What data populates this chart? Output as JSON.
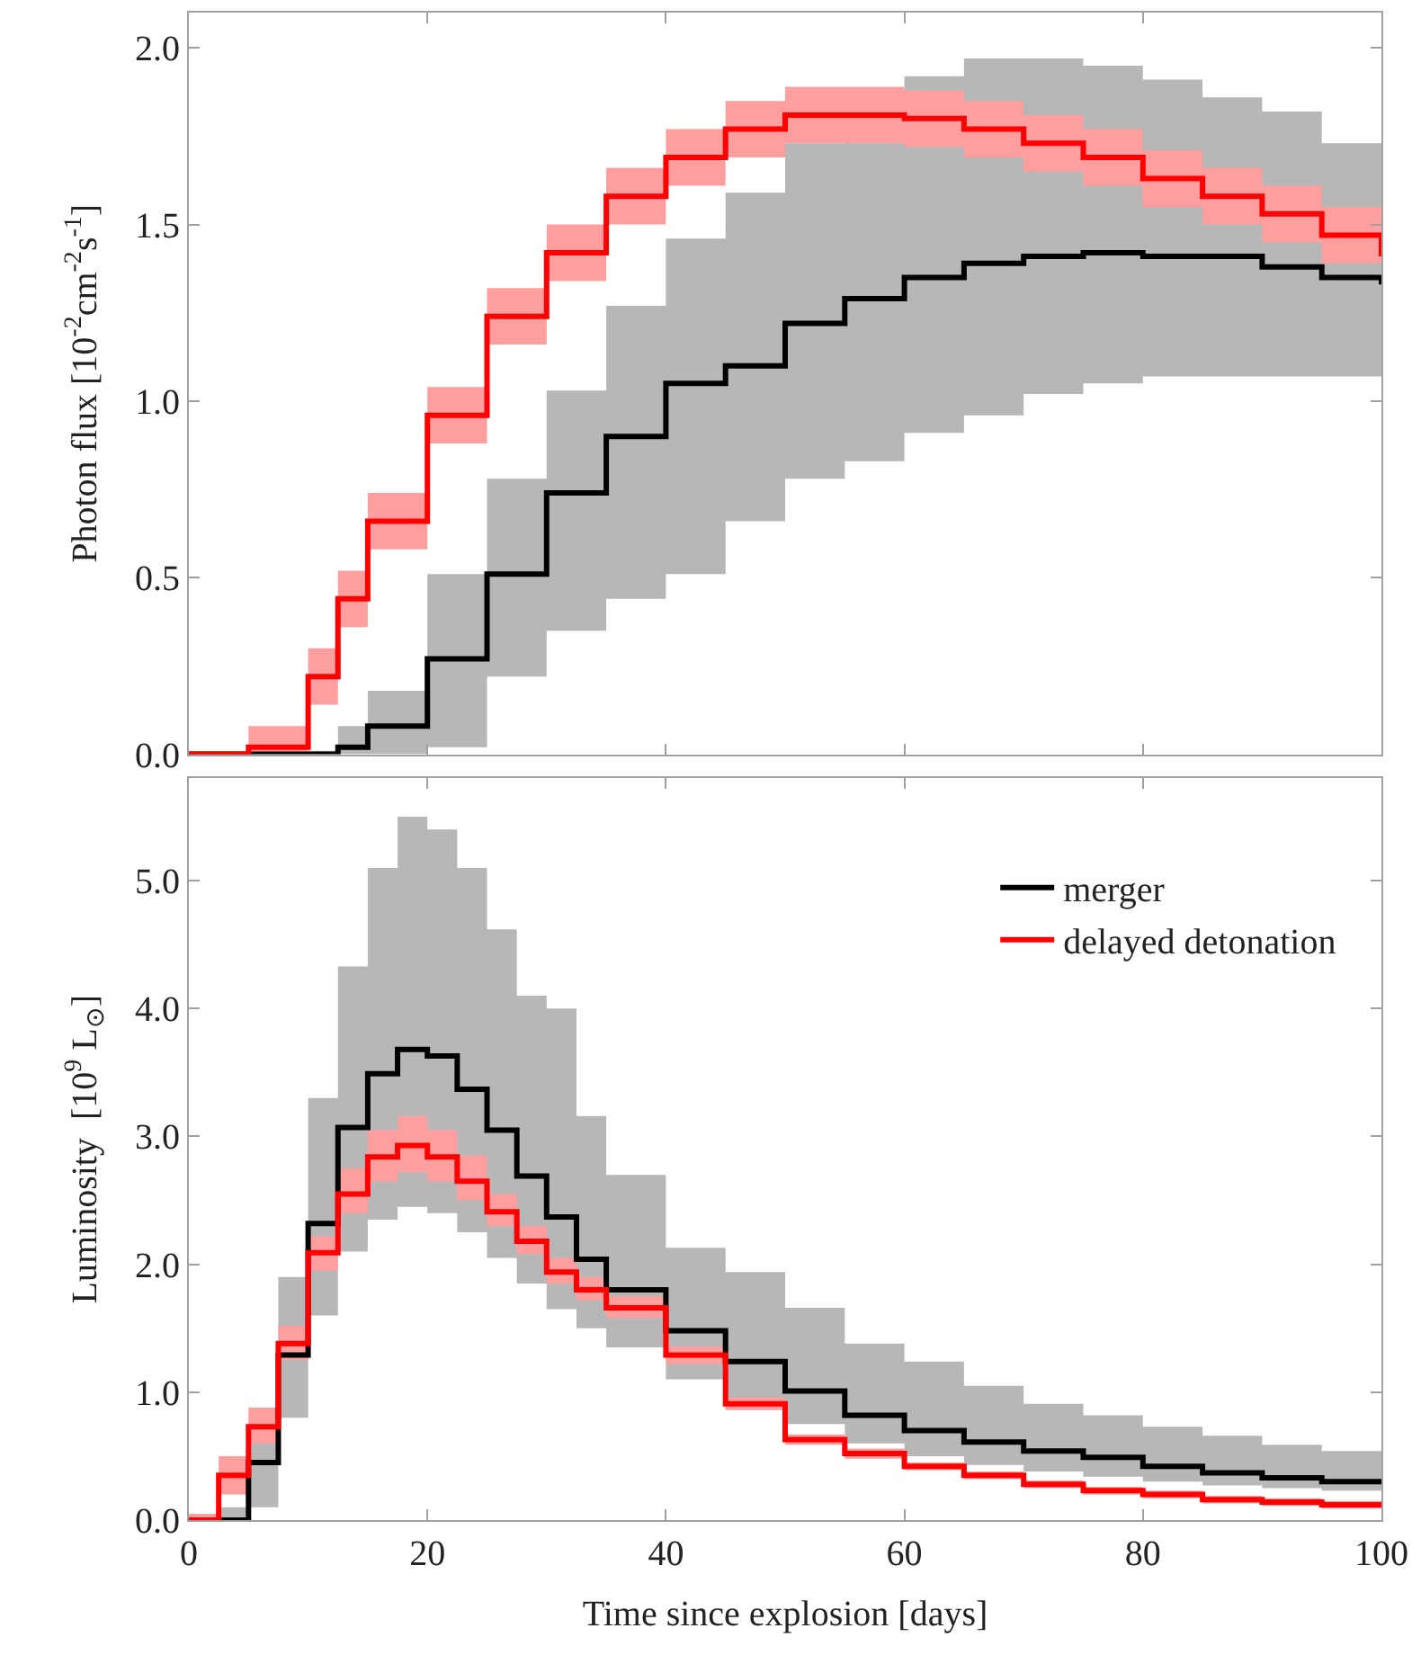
{
  "chart_data": [
    {
      "type": "step",
      "ylabel": "Photon flux [10$^{-2}$cm$^{-2}$s$^{-1}$]",
      "tick_labels": "y",
      "legend": false,
      "xlim": [
        0,
        100
      ],
      "xticks": [
        0,
        20,
        40,
        60,
        80,
        100
      ],
      "ylim": [
        0,
        2.1
      ],
      "yticks": [
        {
          "value": 0,
          "label": "0.0"
        },
        {
          "value": 0.5,
          "label": "0.5"
        },
        {
          "value": 1,
          "label": "1.0"
        },
        {
          "value": 1.5,
          "label": "1.5"
        },
        {
          "value": 2,
          "label": "2.0"
        }
      ],
      "x": [
        0,
        5,
        10,
        12.5,
        15,
        20,
        25,
        30,
        35,
        40,
        45,
        50,
        55,
        60,
        65,
        70,
        75,
        80,
        85,
        90,
        95,
        100
      ],
      "series": [
        {
          "color": "#000000",
          "values": [
            0,
            0,
            0,
            0.02,
            0.08,
            0.27,
            0.51,
            0.74,
            0.9,
            1.05,
            1.1,
            1.22,
            1.29,
            1.35,
            1.39,
            1.41,
            1.42,
            1.41,
            1.41,
            1.38,
            1.35,
            1.33
          ],
          "lower": [
            0,
            0,
            0,
            0,
            0,
            0.02,
            0.22,
            0.35,
            0.44,
            0.51,
            0.66,
            0.78,
            0.83,
            0.91,
            0.96,
            1.02,
            1.05,
            1.07,
            1.07,
            1.07,
            1.07,
            1.06
          ],
          "upper": [
            0,
            0,
            0.01,
            0.08,
            0.18,
            0.51,
            0.78,
            1.03,
            1.27,
            1.46,
            1.59,
            1.73,
            1.8,
            1.92,
            1.97,
            1.97,
            1.95,
            1.91,
            1.86,
            1.82,
            1.73,
            1.66
          ]
        },
        {
          "color": "#ff0000",
          "values": [
            0,
            0.02,
            0.22,
            0.44,
            0.66,
            0.96,
            1.24,
            1.42,
            1.58,
            1.69,
            1.77,
            1.81,
            1.81,
            1.8,
            1.77,
            1.73,
            1.69,
            1.63,
            1.58,
            1.53,
            1.47,
            1.41
          ],
          "lower": [
            0,
            0,
            0.14,
            0.36,
            0.58,
            0.88,
            1.16,
            1.34,
            1.5,
            1.61,
            1.69,
            1.73,
            1.73,
            1.72,
            1.69,
            1.65,
            1.61,
            1.55,
            1.5,
            1.45,
            1.39,
            1.33
          ],
          "upper": [
            0,
            0.08,
            0.3,
            0.52,
            0.74,
            1.04,
            1.32,
            1.5,
            1.66,
            1.77,
            1.85,
            1.89,
            1.89,
            1.88,
            1.85,
            1.81,
            1.77,
            1.71,
            1.66,
            1.61,
            1.55,
            1.49
          ]
        }
      ]
    },
    {
      "type": "step",
      "xlabel": "Time since explosion [days]",
      "ylabel": "Luminosity  [10$^{9}$ L$_{⊙}$]",
      "legend": "top right",
      "xlim": [
        0,
        100
      ],
      "xticks": [
        0,
        20,
        40,
        60,
        80,
        100
      ],
      "ylim": [
        0,
        5.8
      ],
      "yticks": [
        {
          "value": 0,
          "label": "0.0"
        },
        {
          "value": 1,
          "label": "1.0"
        },
        {
          "value": 2,
          "label": "2.0"
        },
        {
          "value": 3,
          "label": "3.0"
        },
        {
          "value": 4,
          "label": "4.0"
        },
        {
          "value": 5,
          "label": "5.0"
        }
      ],
      "x": [
        0,
        2.5,
        5,
        7.5,
        10,
        12.5,
        15,
        17.5,
        20,
        22.5,
        25,
        27.5,
        30,
        32.5,
        35,
        40,
        45,
        50,
        55,
        60,
        65,
        70,
        75,
        80,
        85,
        90,
        95,
        100
      ],
      "series": [
        {
          "name": "merger",
          "color": "#000000",
          "values": [
            0,
            0,
            0.45,
            1.29,
            2.32,
            3.07,
            3.49,
            3.68,
            3.63,
            3.37,
            3.05,
            2.69,
            2.37,
            2.04,
            1.8,
            1.48,
            1.24,
            1.01,
            0.82,
            0.7,
            0.61,
            0.54,
            0.49,
            0.42,
            0.37,
            0.33,
            0.3,
            0.28
          ],
          "lower": [
            0,
            0,
            0.1,
            0.8,
            1.6,
            2.1,
            2.35,
            2.45,
            2.4,
            2.25,
            2.05,
            1.85,
            1.65,
            1.5,
            1.35,
            1.1,
            0.94,
            0.75,
            0.6,
            0.5,
            0.43,
            0.38,
            0.34,
            0.3,
            0.27,
            0.25,
            0.23,
            0.22
          ],
          "upper": [
            0,
            0.1,
            0.7,
            1.9,
            3.3,
            4.33,
            5.1,
            5.5,
            5.4,
            5.1,
            4.62,
            4.1,
            4.0,
            3.16,
            2.7,
            2.13,
            1.94,
            1.66,
            1.38,
            1.24,
            1.05,
            0.91,
            0.82,
            0.73,
            0.66,
            0.59,
            0.54,
            0.52
          ]
        },
        {
          "name": "delayed detonation",
          "color": "#ff0000",
          "values": [
            0,
            0.35,
            0.73,
            1.38,
            2.09,
            2.55,
            2.84,
            2.93,
            2.84,
            2.65,
            2.41,
            2.18,
            1.94,
            1.8,
            1.66,
            1.29,
            0.91,
            0.63,
            0.52,
            0.42,
            0.35,
            0.28,
            0.23,
            0.2,
            0.16,
            0.14,
            0.12,
            0.12
          ],
          "lower": [
            0,
            0.2,
            0.6,
            1.25,
            1.95,
            2.4,
            2.65,
            2.72,
            2.65,
            2.5,
            2.3,
            2.08,
            1.85,
            1.72,
            1.58,
            1.22,
            0.86,
            0.59,
            0.48,
            0.39,
            0.32,
            0.25,
            0.2,
            0.17,
            0.13,
            0.11,
            0.09,
            0.09
          ],
          "upper": [
            0.05,
            0.5,
            0.88,
            1.52,
            2.22,
            2.75,
            3.05,
            3.16,
            3.05,
            2.85,
            2.55,
            2.3,
            2.05,
            1.9,
            1.75,
            1.36,
            0.96,
            0.67,
            0.56,
            0.45,
            0.38,
            0.31,
            0.26,
            0.23,
            0.19,
            0.17,
            0.15,
            0.15
          ]
        }
      ]
    }
  ]
}
